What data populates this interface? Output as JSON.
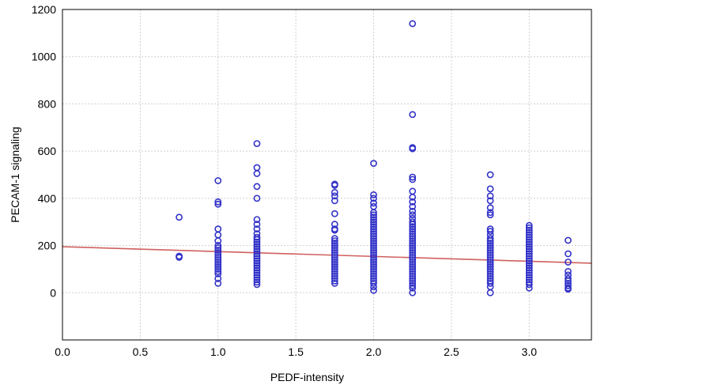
{
  "chart_data": {
    "type": "scatter",
    "xlabel": "PEDF-intensity",
    "ylabel": "PECAM-1 signaling",
    "xlim": [
      0,
      3.4
    ],
    "ylim": [
      -200,
      1200
    ],
    "x_ticks": [
      "0.0",
      "0.5",
      "1.0",
      "1.5",
      "2.0",
      "2.5",
      "3.0"
    ],
    "y_ticks": [
      "0",
      "200",
      "400",
      "600",
      "800",
      "1000",
      "1200"
    ],
    "grid": true,
    "colors": {
      "points": "#3232c8",
      "fit_line": "#d06060"
    },
    "fit_line": {
      "x": [
        0,
        3.4
      ],
      "y": [
        195,
        125
      ]
    },
    "points": [
      {
        "x": 0.75,
        "y": [
          320,
          155,
          150
        ]
      },
      {
        "x": 1.0,
        "y": [
          475,
          385,
          375,
          270,
          245,
          220,
          200,
          190,
          180,
          170,
          160,
          150,
          140,
          130,
          120,
          110,
          100,
          90,
          80,
          60,
          40
        ]
      },
      {
        "x": 1.25,
        "y": [
          632,
          530,
          505,
          450,
          400,
          310,
          290,
          270,
          250,
          235,
          225,
          215,
          205,
          195,
          185,
          175,
          165,
          155,
          145,
          135,
          125,
          115,
          105,
          95,
          85,
          75,
          65,
          55,
          45,
          35
        ]
      },
      {
        "x": 1.75,
        "y": [
          460,
          455,
          425,
          410,
          390,
          335,
          290,
          270,
          265,
          230,
          220,
          210,
          200,
          190,
          180,
          170,
          160,
          150,
          140,
          130,
          120,
          110,
          100,
          90,
          80,
          70,
          60,
          50,
          40
        ]
      },
      {
        "x": 2.0,
        "y": [
          548,
          415,
          400,
          380,
          365,
          340,
          330,
          320,
          310,
          300,
          290,
          280,
          270,
          260,
          250,
          240,
          230,
          220,
          210,
          200,
          190,
          180,
          170,
          160,
          150,
          140,
          130,
          120,
          110,
          100,
          90,
          80,
          70,
          60,
          50,
          40,
          25,
          10
        ]
      },
      {
        "x": 2.25,
        "y": [
          1140,
          755,
          615,
          610,
          490,
          480,
          430,
          405,
          385,
          365,
          345,
          330,
          315,
          300,
          290,
          280,
          270,
          260,
          250,
          240,
          230,
          220,
          210,
          200,
          190,
          180,
          170,
          160,
          150,
          140,
          130,
          120,
          110,
          100,
          90,
          80,
          70,
          60,
          50,
          40,
          30,
          20,
          0
        ]
      },
      {
        "x": 2.75,
        "y": [
          500,
          440,
          410,
          390,
          360,
          340,
          330,
          270,
          260,
          245,
          230,
          220,
          210,
          200,
          190,
          180,
          170,
          160,
          150,
          140,
          130,
          120,
          110,
          100,
          90,
          80,
          70,
          60,
          50,
          40,
          25,
          0
        ]
      },
      {
        "x": 3.0,
        "y": [
          285,
          275,
          265,
          255,
          245,
          235,
          225,
          215,
          205,
          195,
          185,
          175,
          165,
          155,
          145,
          135,
          125,
          115,
          105,
          95,
          85,
          75,
          65,
          55,
          45,
          35,
          20
        ]
      },
      {
        "x": 3.25,
        "y": [
          222,
          165,
          130,
          90,
          75,
          60,
          50,
          40,
          30,
          20,
          15
        ]
      }
    ]
  }
}
